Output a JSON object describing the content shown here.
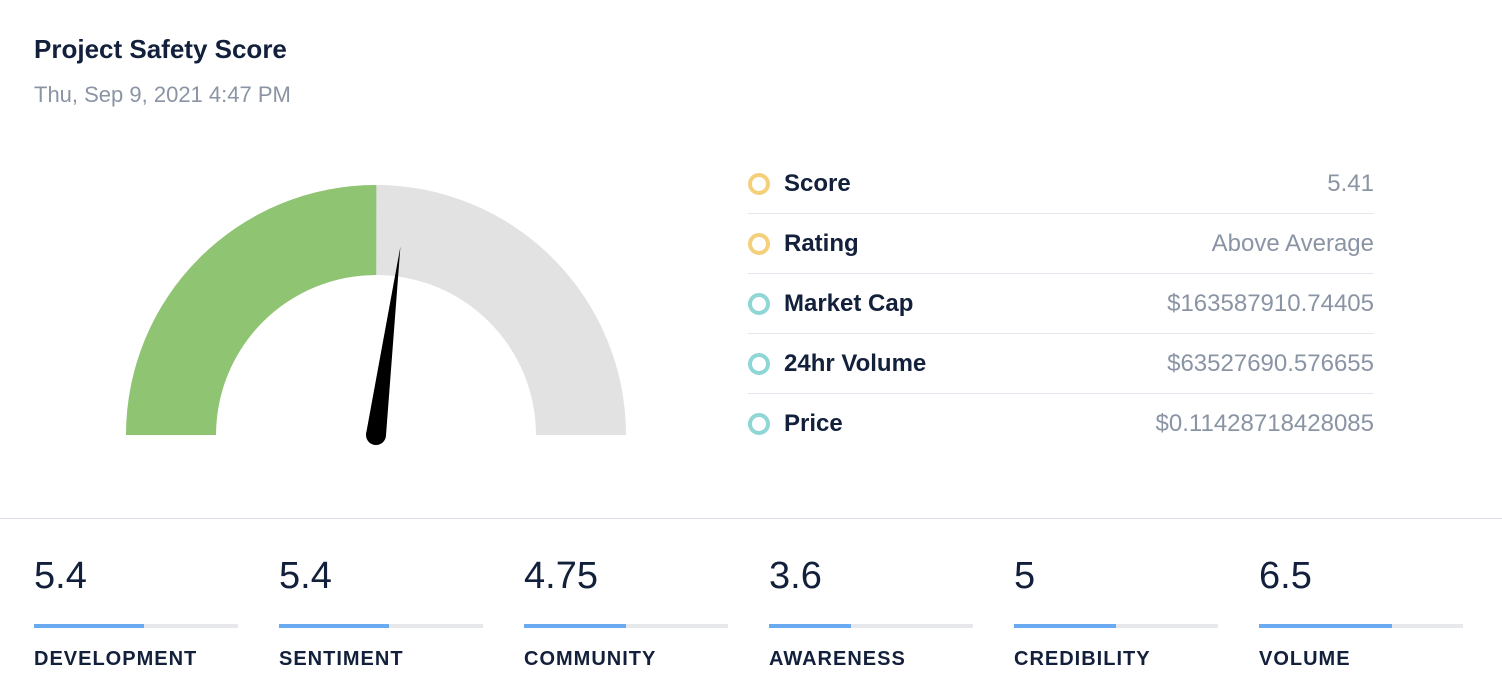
{
  "header": {
    "title": "Project Safety Score",
    "timestamp": "Thu, Sep 9, 2021 4:47 PM"
  },
  "colors": {
    "gauge_fill": "#8fc472",
    "gauge_track": "#e2e2e2",
    "needle": "#000000",
    "score_dot": "#f5cf7a",
    "market_dot": "#8fd6d6",
    "metric_fill": "#6aaaf0",
    "metric_track": "#e6e8ec"
  },
  "chart_data": {
    "type": "gauge",
    "value": 5.41,
    "min": 0,
    "max": 10
  },
  "stats": [
    {
      "label": "Score",
      "value": "5.41",
      "dot": "yellow"
    },
    {
      "label": "Rating",
      "value": "Above Average",
      "dot": "yellow"
    },
    {
      "label": "Market Cap",
      "value": "$163587910.74405",
      "dot": "teal"
    },
    {
      "label": "24hr Volume",
      "value": "$63527690.576655",
      "dot": "teal"
    },
    {
      "label": "Price",
      "value": "$0.11428718428085",
      "dot": "teal"
    }
  ],
  "metrics": [
    {
      "value": "5.4",
      "label": "DEVELOPMENT",
      "fill": 0.54
    },
    {
      "value": "5.4",
      "label": "SENTIMENT",
      "fill": 0.54
    },
    {
      "value": "4.75",
      "label": "COMMUNITY",
      "fill": 0.5
    },
    {
      "value": "3.6",
      "label": "AWARENESS",
      "fill": 0.4
    },
    {
      "value": "5",
      "label": "CREDIBILITY",
      "fill": 0.5
    },
    {
      "value": "6.5",
      "label": "VOLUME",
      "fill": 0.65
    }
  ]
}
